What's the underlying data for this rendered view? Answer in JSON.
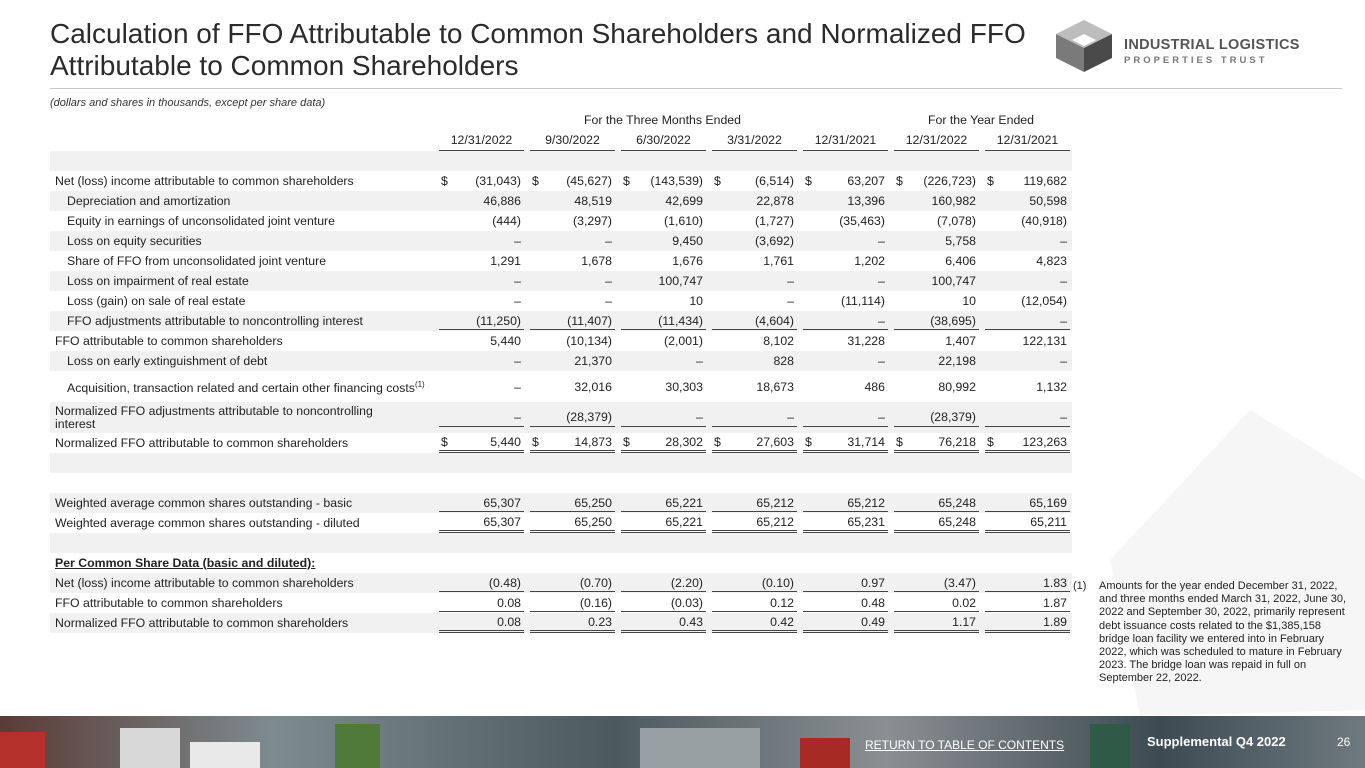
{
  "header": {
    "title": "Calculation of FFO Attributable to Common Shareholders and Normalized FFO Attributable to Common Shareholders",
    "logo_line1": "INDUSTRIAL LOGISTICS",
    "logo_line2": "PROPERTIES TRUST",
    "note": "(dollars and shares in thousands, except per share data)"
  },
  "table": {
    "groups": [
      {
        "label": "For the Three Months Ended",
        "span": 5
      },
      {
        "label": "For the Year Ended",
        "span": 2
      }
    ],
    "columns": [
      "12/31/2022",
      "9/30/2022",
      "6/30/2022",
      "3/31/2022",
      "12/31/2021",
      "12/31/2022",
      "12/31/2021"
    ],
    "rows": [
      {
        "label": "Net (loss) income attributable to common shareholders",
        "prefix": "$",
        "values": [
          "(31,043)",
          "(45,627)",
          "(143,539)",
          "(6,514)",
          "63,207",
          "(226,723)",
          "119,682"
        ]
      },
      {
        "label": "Depreciation and amortization",
        "values": [
          "46,886",
          "48,519",
          "42,699",
          "22,878",
          "13,396",
          "160,982",
          "50,598"
        ]
      },
      {
        "label": "Equity in earnings of unconsolidated joint venture",
        "values": [
          "(444)",
          "(3,297)",
          "(1,610)",
          "(1,727)",
          "(35,463)",
          "(7,078)",
          "(40,918)"
        ]
      },
      {
        "label": "Loss on equity securities",
        "values": [
          "–",
          "–",
          "9,450",
          "(3,692)",
          "–",
          "5,758",
          "–"
        ]
      },
      {
        "label": "Share of FFO from unconsolidated joint venture",
        "values": [
          "1,291",
          "1,678",
          "1,676",
          "1,761",
          "1,202",
          "6,406",
          "4,823"
        ]
      },
      {
        "label": "Loss on impairment of real estate",
        "values": [
          "–",
          "–",
          "100,747",
          "–",
          "–",
          "100,747",
          "–"
        ]
      },
      {
        "label": "Loss (gain) on sale of real estate",
        "values": [
          "–",
          "–",
          "10",
          "–",
          "(11,114)",
          "10",
          "(12,054)"
        ]
      },
      {
        "label": "FFO adjustments attributable to noncontrolling interest",
        "values": [
          "(11,250)",
          "(11,407)",
          "(11,434)",
          "(4,604)",
          "–",
          "(38,695)",
          "–"
        ]
      },
      {
        "label": "FFO attributable to common shareholders",
        "values": [
          "5,440",
          "(10,134)",
          "(2,001)",
          "8,102",
          "31,228",
          "1,407",
          "122,131"
        ]
      },
      {
        "label": "Loss on early extinguishment of debt",
        "values": [
          "–",
          "21,370",
          "–",
          "828",
          "–",
          "22,198",
          "–"
        ]
      },
      {
        "label": "Acquisition, transaction related and certain other financing costs",
        "note": "(1)",
        "values": [
          "–",
          "32,016",
          "30,303",
          "18,673",
          "486",
          "80,992",
          "1,132"
        ]
      },
      {
        "label": "Normalized FFO adjustments attributable to noncontrolling interest",
        "values": [
          "–",
          "(28,379)",
          "–",
          "–",
          "–",
          "(28,379)",
          "–"
        ]
      },
      {
        "label": "Normalized FFO attributable to common shareholders",
        "prefix": "$",
        "values": [
          "5,440",
          "14,873",
          "28,302",
          "27,603",
          "31,714",
          "76,218",
          "123,263"
        ]
      },
      {
        "label": "Weighted average common shares outstanding - basic",
        "values": [
          "65,307",
          "65,250",
          "65,221",
          "65,212",
          "65,212",
          "65,248",
          "65,169"
        ]
      },
      {
        "label": "Weighted average common shares outstanding - diluted",
        "values": [
          "65,307",
          "65,250",
          "65,221",
          "65,212",
          "65,231",
          "65,248",
          "65,211"
        ]
      },
      {
        "label": "Per Common Share Data (basic and diluted):"
      },
      {
        "label": "Net (loss) income attributable to common shareholders",
        "values": [
          "(0.48)",
          "(0.70)",
          "(2.20)",
          "(0.10)",
          "0.97",
          "(3.47)",
          "1.83"
        ]
      },
      {
        "label": "FFO attributable to common shareholders",
        "values": [
          "0.08",
          "(0.16)",
          "(0.03)",
          "0.12",
          "0.48",
          "0.02",
          "1.87"
        ]
      },
      {
        "label": "Normalized FFO attributable to common shareholders",
        "values": [
          "0.08",
          "0.23",
          "0.43",
          "0.42",
          "0.49",
          "1.17",
          "1.89"
        ]
      }
    ]
  },
  "footnote": {
    "marker": "(1)",
    "text": "Amounts for the year ended December 31, 2022, and three months ended March 31, 2022, June 30, 2022 and September 30, 2022, primarily represent debt issuance costs related to the $1,385,158 bridge loan facility we entered into in February 2022, which was scheduled to mature in February 2023. The bridge loan was repaid in full on September 22, 2022."
  },
  "footer": {
    "link": "RETURN TO TABLE OF CONTENTS",
    "label": "Supplemental Q4 2022",
    "page": "26"
  }
}
